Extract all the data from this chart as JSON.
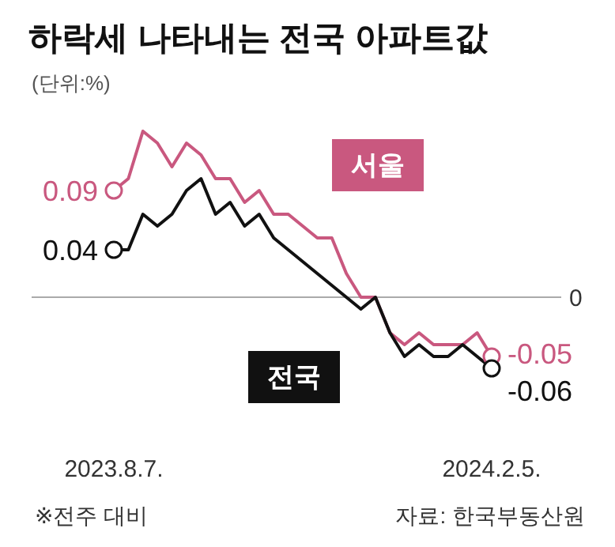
{
  "chart_data": {
    "type": "line",
    "title": "하락세 나타내는 전국 아파트값",
    "subtitle": "(단위:%)",
    "categories": [
      "2023.8.7.",
      null,
      null,
      null,
      null,
      null,
      null,
      null,
      null,
      null,
      null,
      null,
      null,
      null,
      null,
      null,
      null,
      null,
      null,
      null,
      null,
      null,
      null,
      null,
      null,
      null,
      "2024.2.5."
    ],
    "series": [
      {
        "name": "서울",
        "color": "#c9587f",
        "values": [
          0.09,
          0.1,
          0.14,
          0.13,
          0.11,
          0.13,
          0.12,
          0.1,
          0.1,
          0.08,
          0.09,
          0.07,
          0.07,
          0.06,
          0.05,
          0.05,
          0.02,
          0,
          0,
          -0.03,
          -0.04,
          -0.03,
          -0.04,
          -0.04,
          -0.04,
          -0.03,
          -0.05
        ],
        "value_labels": [
          "0.09",
          null,
          null,
          null,
          null,
          null,
          null,
          null,
          null,
          null,
          null,
          null,
          null,
          null,
          null,
          null,
          null,
          null,
          null,
          null,
          null,
          null,
          null,
          null,
          null,
          null,
          "-0.05"
        ]
      },
      {
        "name": "전국",
        "color": "#111111",
        "values": [
          0.04,
          0.04,
          0.07,
          0.06,
          0.07,
          0.09,
          0.1,
          0.07,
          0.08,
          0.06,
          0.07,
          0.05,
          0.04,
          0.03,
          0.02,
          0.01,
          0,
          -0.01,
          0,
          -0.03,
          -0.05,
          -0.04,
          -0.05,
          -0.05,
          -0.04,
          -0.05,
          -0.06
        ],
        "value_labels": [
          "0.04",
          null,
          null,
          null,
          null,
          null,
          null,
          null,
          null,
          null,
          null,
          null,
          null,
          null,
          null,
          null,
          null,
          null,
          null,
          null,
          null,
          null,
          null,
          null,
          null,
          null,
          "-0.06"
        ]
      }
    ],
    "ref_lines": [
      {
        "axis": "y",
        "value": 0,
        "label": "0",
        "color": "#aaaaaa"
      }
    ],
    "line_style": "solid",
    "annotations": [
      "※전주 대비",
      "자료: 한국부동산원"
    ]
  }
}
